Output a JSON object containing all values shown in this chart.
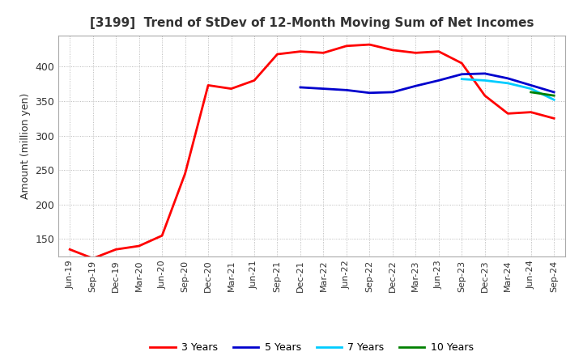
{
  "title": "[3199]  Trend of StDev of 12-Month Moving Sum of Net Incomes",
  "ylabel": "Amount (million yen)",
  "ylim": [
    125,
    445
  ],
  "yticks": [
    150,
    200,
    250,
    300,
    350,
    400
  ],
  "background_color": "#ffffff",
  "grid_color": "#aaaaaa",
  "legend_labels": [
    "3 Years",
    "5 Years",
    "7 Years",
    "10 Years"
  ],
  "legend_colors": [
    "#ff0000",
    "#0000cd",
    "#00ccff",
    "#008000"
  ],
  "x_labels": [
    "Jun-19",
    "Sep-19",
    "Dec-19",
    "Mar-20",
    "Jun-20",
    "Sep-20",
    "Dec-20",
    "Mar-21",
    "Jun-21",
    "Sep-21",
    "Dec-21",
    "Mar-22",
    "Jun-22",
    "Sep-22",
    "Dec-22",
    "Mar-23",
    "Jun-23",
    "Sep-23",
    "Dec-23",
    "Mar-24",
    "Jun-24",
    "Sep-24"
  ],
  "series_3y": [
    135,
    122,
    135,
    140,
    155,
    245,
    373,
    368,
    380,
    418,
    422,
    420,
    430,
    432,
    424,
    420,
    422,
    405,
    358,
    332,
    334,
    325
  ],
  "series_5y": [
    null,
    null,
    null,
    null,
    null,
    null,
    null,
    null,
    null,
    null,
    370,
    368,
    366,
    362,
    363,
    372,
    380,
    389,
    390,
    383,
    373,
    363
  ],
  "series_7y": [
    null,
    null,
    null,
    null,
    null,
    null,
    null,
    null,
    null,
    null,
    null,
    null,
    null,
    null,
    null,
    null,
    null,
    382,
    380,
    376,
    368,
    352
  ],
  "series_10y": [
    null,
    null,
    null,
    null,
    null,
    null,
    null,
    null,
    null,
    null,
    null,
    null,
    null,
    null,
    null,
    null,
    null,
    null,
    null,
    null,
    363,
    358
  ]
}
